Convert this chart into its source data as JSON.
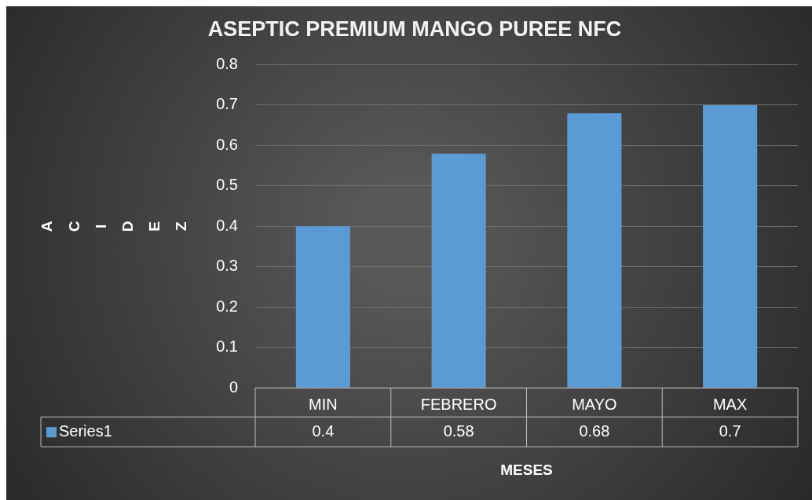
{
  "chart_data": {
    "type": "bar",
    "title": "ASEPTIC PREMIUM MANGO PUREE NFC",
    "xlabel": "MESES",
    "ylabel": "ACIDEZ",
    "categories": [
      "MIN",
      "FEBRERO",
      "MAYO",
      "MAX"
    ],
    "series": [
      {
        "name": "Series1",
        "color": "#5b9bd5",
        "values": [
          0.4,
          0.58,
          0.68,
          0.7
        ]
      }
    ],
    "ylim": [
      0,
      0.8
    ],
    "yticks": [
      0,
      0.1,
      0.2,
      0.3,
      0.4,
      0.5,
      0.6,
      0.7,
      0.8
    ],
    "grid": "y",
    "data_labels": true,
    "legend": "bottom"
  }
}
